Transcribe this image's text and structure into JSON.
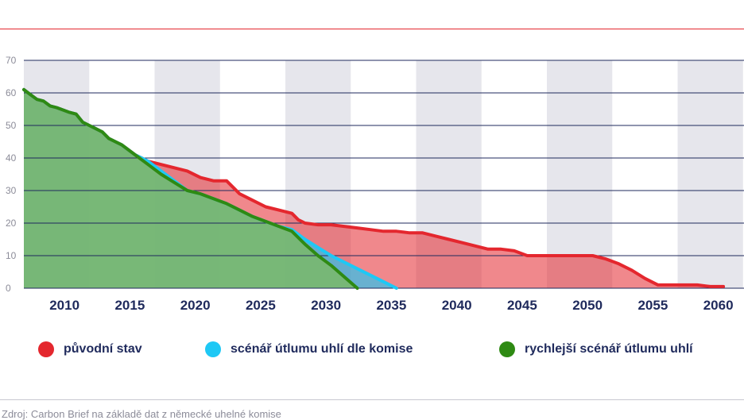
{
  "header": {
    "title": ""
  },
  "source": "Zdroj: Carbon Brief na základě dat z německé uhelné komise",
  "colors": {
    "puvodni": "#e4272e",
    "komise": "#1ec8f5",
    "rychlejsi": "#2e8a13",
    "band": "#e6e6ec",
    "grid": "#1f2a5c"
  },
  "chart_data": {
    "type": "area",
    "title": "",
    "xlabel": "",
    "ylabel": "",
    "xlim": [
      2007.5,
      2062
    ],
    "ylim": [
      0,
      70
    ],
    "y_ticks": [
      "0",
      "10",
      "20",
      "30",
      "40",
      "50",
      "60",
      "70"
    ],
    "x_ticks": [
      "2010",
      "2015",
      "2020",
      "2025",
      "2030",
      "2035",
      "2040",
      "2045",
      "2050",
      "2055",
      "2060"
    ],
    "grid": true,
    "legend_position": "bottom",
    "series": [
      {
        "name": "původní stav",
        "color": "#e4272e",
        "points": [
          [
            2007.5,
            61
          ],
          [
            2008,
            59.5
          ],
          [
            2008.5,
            58
          ],
          [
            2009,
            57.5
          ],
          [
            2009.5,
            56
          ],
          [
            2010,
            55.5
          ],
          [
            2011,
            54
          ],
          [
            2011.5,
            53.5
          ],
          [
            2012,
            51
          ],
          [
            2012.5,
            50
          ],
          [
            2013,
            49
          ],
          [
            2013.5,
            48
          ],
          [
            2014,
            46
          ],
          [
            2015,
            44
          ],
          [
            2016,
            41
          ],
          [
            2017,
            39
          ],
          [
            2018,
            38
          ],
          [
            2019,
            37
          ],
          [
            2020,
            36
          ],
          [
            2021,
            34
          ],
          [
            2022,
            33
          ],
          [
            2023,
            33
          ],
          [
            2024,
            29
          ],
          [
            2025,
            27
          ],
          [
            2026,
            25
          ],
          [
            2027,
            24
          ],
          [
            2028,
            23
          ],
          [
            2028.5,
            21
          ],
          [
            2029,
            20
          ],
          [
            2030,
            19.5
          ],
          [
            2031,
            19.5
          ],
          [
            2032,
            19
          ],
          [
            2033,
            18.5
          ],
          [
            2034,
            18
          ],
          [
            2035,
            17.5
          ],
          [
            2036,
            17.5
          ],
          [
            2037,
            17
          ],
          [
            2038,
            17
          ],
          [
            2039,
            16
          ],
          [
            2040,
            15
          ],
          [
            2041,
            14
          ],
          [
            2042,
            13
          ],
          [
            2043,
            12
          ],
          [
            2044,
            12
          ],
          [
            2045,
            11.5
          ],
          [
            2046,
            10
          ],
          [
            2047,
            10
          ],
          [
            2048,
            10
          ],
          [
            2049,
            10
          ],
          [
            2050,
            10
          ],
          [
            2051,
            10
          ],
          [
            2052,
            9
          ],
          [
            2053,
            7.5
          ],
          [
            2054,
            5.5
          ],
          [
            2055,
            3
          ],
          [
            2056,
            1
          ],
          [
            2057,
            1
          ],
          [
            2058,
            1
          ],
          [
            2059,
            1
          ],
          [
            2060,
            0.5
          ],
          [
            2061,
            0.5
          ]
        ]
      },
      {
        "name": "scénář útlumu uhlí dle komise",
        "color": "#1ec8f5",
        "points": [
          [
            2007.5,
            61
          ],
          [
            2008,
            59.5
          ],
          [
            2008.5,
            58
          ],
          [
            2009,
            57.5
          ],
          [
            2009.5,
            56
          ],
          [
            2010,
            55.5
          ],
          [
            2011,
            54
          ],
          [
            2011.5,
            53.5
          ],
          [
            2012,
            51
          ],
          [
            2012.5,
            50
          ],
          [
            2013,
            49
          ],
          [
            2013.5,
            48
          ],
          [
            2014,
            46
          ],
          [
            2015,
            44
          ],
          [
            2016,
            41
          ],
          [
            2017,
            39
          ],
          [
            2018,
            36
          ],
          [
            2019,
            33
          ],
          [
            2020,
            30
          ],
          [
            2021,
            29
          ],
          [
            2022,
            27.5
          ],
          [
            2023,
            26
          ],
          [
            2024,
            24
          ],
          [
            2025,
            22
          ],
          [
            2026,
            20.5
          ],
          [
            2027,
            19
          ],
          [
            2028,
            18
          ],
          [
            2029,
            15
          ],
          [
            2030,
            12.5
          ],
          [
            2031,
            10
          ],
          [
            2032,
            8
          ],
          [
            2033,
            6
          ],
          [
            2034,
            4
          ],
          [
            2035,
            2
          ],
          [
            2036,
            0
          ]
        ]
      },
      {
        "name": "rychlejší scénář útlumu uhlí",
        "color": "#2e8a13",
        "points": [
          [
            2007.5,
            61
          ],
          [
            2008,
            59.5
          ],
          [
            2008.5,
            58
          ],
          [
            2009,
            57.5
          ],
          [
            2009.5,
            56
          ],
          [
            2010,
            55.5
          ],
          [
            2011,
            54
          ],
          [
            2011.5,
            53.5
          ],
          [
            2012,
            51
          ],
          [
            2012.5,
            50
          ],
          [
            2013,
            49
          ],
          [
            2013.5,
            48
          ],
          [
            2014,
            46
          ],
          [
            2015,
            44
          ],
          [
            2016,
            41
          ],
          [
            2017,
            38
          ],
          [
            2018,
            35
          ],
          [
            2019,
            32.5
          ],
          [
            2020,
            30
          ],
          [
            2021,
            29
          ],
          [
            2022,
            27.5
          ],
          [
            2023,
            26
          ],
          [
            2024,
            24
          ],
          [
            2025,
            22
          ],
          [
            2026,
            20.5
          ],
          [
            2027,
            19
          ],
          [
            2028,
            17.5
          ],
          [
            2029,
            13.5
          ],
          [
            2030,
            10
          ],
          [
            2031,
            7
          ],
          [
            2032,
            3.5
          ],
          [
            2033,
            0
          ]
        ]
      }
    ]
  }
}
